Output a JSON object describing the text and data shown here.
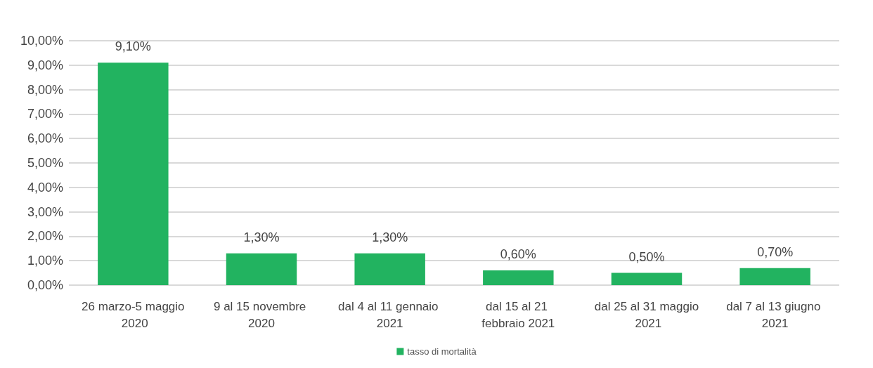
{
  "chart_data": {
    "type": "bar",
    "categories": [
      "26 marzo-5 maggio 2020",
      "9 al 15 novembre 2020",
      "dal 4 al 11 gennaio 2021",
      "dal 15 al 21 febbraio 2021",
      "dal 25 al 31 maggio 2021",
      "dal 7 al 13 giugno 2021"
    ],
    "series": [
      {
        "name": "tasso di mortalità",
        "color": "#22b360",
        "values": [
          9.1,
          1.3,
          1.3,
          0.6,
          0.5,
          0.7
        ],
        "value_labels": [
          "9,10%",
          "1,30%",
          "1,30%",
          "0,60%",
          "0,50%",
          "0,70%"
        ]
      }
    ],
    "ylim": [
      0,
      10
    ],
    "yticks": [
      {
        "value": 0,
        "label": "0,00%"
      },
      {
        "value": 1,
        "label": "1,00%"
      },
      {
        "value": 2,
        "label": "2,00%"
      },
      {
        "value": 3,
        "label": "3,00%"
      },
      {
        "value": 4,
        "label": "4,00%"
      },
      {
        "value": 5,
        "label": "5,00%"
      },
      {
        "value": 6,
        "label": "6,00%"
      },
      {
        "value": 7,
        "label": "7,00%"
      },
      {
        "value": 8,
        "label": "8,00%"
      },
      {
        "value": 9,
        "label": "9,00%"
      },
      {
        "value": 10,
        "label": "10,00%"
      }
    ],
    "grid": "y",
    "legend": "bottom"
  }
}
